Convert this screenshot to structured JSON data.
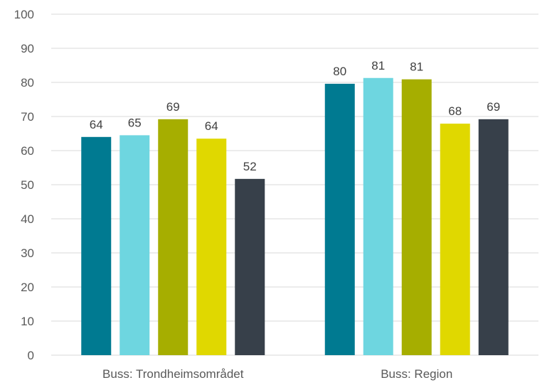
{
  "chart_data": {
    "type": "bar",
    "title": "",
    "xlabel": "",
    "ylabel": "",
    "ylim": [
      0,
      100
    ],
    "yticks": [
      0,
      10,
      20,
      30,
      40,
      50,
      60,
      70,
      80,
      90,
      100
    ],
    "grid": true,
    "legend": "none",
    "categories": [
      "Buss: Trondheimsområdet",
      "Buss: Region"
    ],
    "series": [
      {
        "color": "#007A91",
        "values": [
          64,
          80
        ]
      },
      {
        "color": "#6ED6E0",
        "values": [
          65,
          81
        ]
      },
      {
        "color": "#A6AE00",
        "values": [
          69,
          81
        ]
      },
      {
        "color": "#E0D800",
        "values": [
          64,
          68
        ]
      },
      {
        "color": "#37404A",
        "values": [
          52,
          69
        ]
      }
    ],
    "heights": [
      [
        64,
        64.5,
        69.2,
        63.5,
        51.7
      ],
      [
        79.6,
        81.3,
        80.9,
        67.9,
        69.2
      ]
    ],
    "gridline_color": "#D9D9D9"
  }
}
